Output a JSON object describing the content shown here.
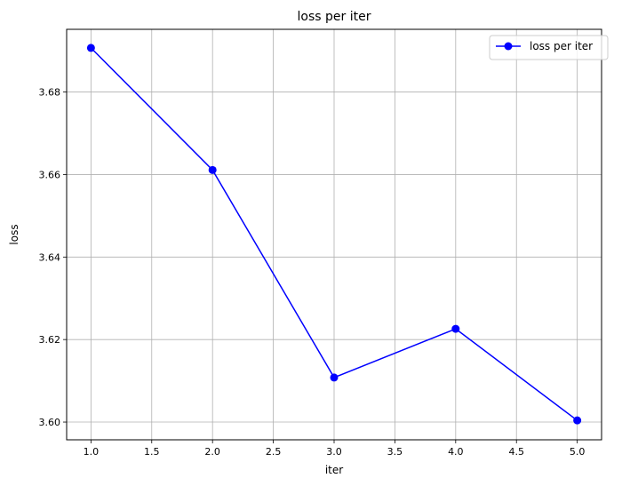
{
  "chart_data": {
    "type": "line",
    "title": "loss per iter",
    "xlabel": "iter",
    "ylabel": "loss",
    "x": [
      1,
      2,
      3,
      4,
      5
    ],
    "series": [
      {
        "name": "loss per iter",
        "values": [
          3.6907,
          3.6611,
          3.6108,
          3.6226,
          3.6004
        ],
        "color": "#0000ff",
        "marker": "circle"
      }
    ],
    "xlim": [
      0.8,
      5.2
    ],
    "ylim": [
      3.5957,
      3.6952
    ],
    "xticks": [
      1.0,
      1.5,
      2.0,
      2.5,
      3.0,
      3.5,
      4.0,
      4.5,
      5.0
    ],
    "xtick_labels": [
      "1.0",
      "1.5",
      "2.0",
      "2.5",
      "3.0",
      "3.5",
      "4.0",
      "4.5",
      "5.0"
    ],
    "yticks": [
      3.6,
      3.62,
      3.64,
      3.66,
      3.68
    ],
    "ytick_labels": [
      "3.60",
      "3.62",
      "3.64",
      "3.66",
      "3.68"
    ],
    "grid": true,
    "grid_color": "#b0b0b0",
    "legend": "top-right"
  }
}
